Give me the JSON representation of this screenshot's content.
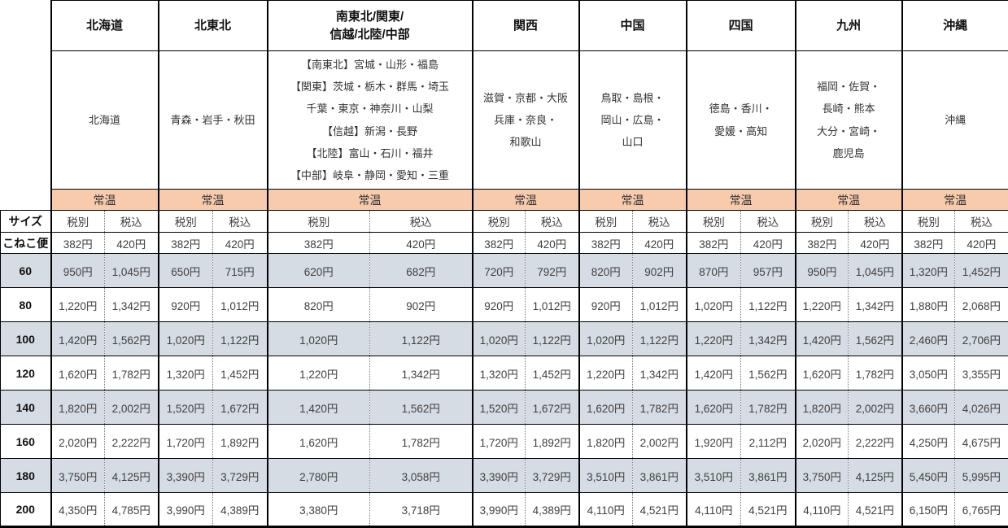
{
  "chart_data": {
    "type": "table",
    "size_header": "サイズ",
    "koneko_label": "こねこ便",
    "temperature_label": "常温",
    "tax_labels": {
      "excluded": "税別",
      "included": "税込"
    },
    "koneko_prices_excl": "382円",
    "koneko_prices_incl": "420円",
    "colors": {
      "temperature_bg": "#F8CBAD",
      "shaded_row_bg": "#D6DCE4",
      "border": "#000000"
    },
    "regions": [
      {
        "name": "北海道",
        "name_lines": [
          "北海道"
        ],
        "prefecture_lines": [
          "北海道"
        ]
      },
      {
        "name": "北東北",
        "name_lines": [
          "北東北"
        ],
        "prefecture_lines": [
          "青森・岩手・秋田"
        ]
      },
      {
        "name": "南東北/関東/信越/北陸/中部",
        "name_lines": [
          "南東北/関東/",
          "信越/北陸/中部"
        ],
        "prefecture_lines": [
          "【南東北】宮城・山形・福島",
          "【関東】茨城・栃木・群馬・埼玉",
          "千葉・東京・神奈川・山梨",
          "【信越】新潟・長野",
          "【北陸】富山・石川・福井",
          "【中部】岐阜・静岡・愛知・三重"
        ]
      },
      {
        "name": "関西",
        "name_lines": [
          "関西"
        ],
        "prefecture_lines": [
          "滋賀・京都・大阪",
          "兵庫・奈良・",
          "和歌山"
        ]
      },
      {
        "name": "中国",
        "name_lines": [
          "中国"
        ],
        "prefecture_lines": [
          "鳥取・島根・",
          "岡山・広島・",
          "山口"
        ]
      },
      {
        "name": "四国",
        "name_lines": [
          "四国"
        ],
        "prefecture_lines": [
          "徳島・香川・",
          "愛媛・高知"
        ]
      },
      {
        "name": "九州",
        "name_lines": [
          "九州"
        ],
        "prefecture_lines": [
          "福岡・佐賀・",
          "長崎・熊本",
          "大分・宮崎・",
          "鹿児島"
        ]
      },
      {
        "name": "沖縄",
        "name_lines": [
          "沖縄"
        ],
        "prefecture_lines": [
          "沖縄"
        ]
      }
    ],
    "rows": [
      {
        "size": "60",
        "shaded": true,
        "prices": [
          [
            "950円",
            "1,045円"
          ],
          [
            "650円",
            "715円"
          ],
          [
            "620円",
            "682円"
          ],
          [
            "720円",
            "792円"
          ],
          [
            "820円",
            "902円"
          ],
          [
            "870円",
            "957円"
          ],
          [
            "950円",
            "1,045円"
          ],
          [
            "1,320円",
            "1,452円"
          ]
        ]
      },
      {
        "size": "80",
        "shaded": false,
        "prices": [
          [
            "1,220円",
            "1,342円"
          ],
          [
            "920円",
            "1,012円"
          ],
          [
            "820円",
            "902円"
          ],
          [
            "920円",
            "1,012円"
          ],
          [
            "920円",
            "1,012円"
          ],
          [
            "1,020円",
            "1,122円"
          ],
          [
            "1,220円",
            "1,342円"
          ],
          [
            "1,880円",
            "2,068円"
          ]
        ]
      },
      {
        "size": "100",
        "shaded": true,
        "prices": [
          [
            "1,420円",
            "1,562円"
          ],
          [
            "1,020円",
            "1,122円"
          ],
          [
            "1,020円",
            "1,122円"
          ],
          [
            "1,020円",
            "1,122円"
          ],
          [
            "1,020円",
            "1,122円"
          ],
          [
            "1,220円",
            "1,342円"
          ],
          [
            "1,420円",
            "1,562円"
          ],
          [
            "2,460円",
            "2,706円"
          ]
        ]
      },
      {
        "size": "120",
        "shaded": false,
        "prices": [
          [
            "1,620円",
            "1,782円"
          ],
          [
            "1,320円",
            "1,452円"
          ],
          [
            "1,220円",
            "1,342円"
          ],
          [
            "1,320円",
            "1,452円"
          ],
          [
            "1,220円",
            "1,342円"
          ],
          [
            "1,420円",
            "1,562円"
          ],
          [
            "1,620円",
            "1,782円"
          ],
          [
            "3,050円",
            "3,355円"
          ]
        ]
      },
      {
        "size": "140",
        "shaded": true,
        "prices": [
          [
            "1,820円",
            "2,002円"
          ],
          [
            "1,520円",
            "1,672円"
          ],
          [
            "1,420円",
            "1,562円"
          ],
          [
            "1,520円",
            "1,672円"
          ],
          [
            "1,620円",
            "1,782円"
          ],
          [
            "1,620円",
            "1,782円"
          ],
          [
            "1,820円",
            "2,002円"
          ],
          [
            "3,660円",
            "4,026円"
          ]
        ]
      },
      {
        "size": "160",
        "shaded": false,
        "prices": [
          [
            "2,020円",
            "2,222円"
          ],
          [
            "1,720円",
            "1,892円"
          ],
          [
            "1,620円",
            "1,782円"
          ],
          [
            "1,720円",
            "1,892円"
          ],
          [
            "1,820円",
            "2,002円"
          ],
          [
            "1,920円",
            "2,112円"
          ],
          [
            "2,020円",
            "2,222円"
          ],
          [
            "4,250円",
            "4,675円"
          ]
        ]
      },
      {
        "size": "180",
        "shaded": true,
        "prices": [
          [
            "3,750円",
            "4,125円"
          ],
          [
            "3,390円",
            "3,729円"
          ],
          [
            "2,780円",
            "3,058円"
          ],
          [
            "3,390円",
            "3,729円"
          ],
          [
            "3,510円",
            "3,861円"
          ],
          [
            "3,510円",
            "3,861円"
          ],
          [
            "3,750円",
            "4,125円"
          ],
          [
            "5,450円",
            "5,995円"
          ]
        ]
      },
      {
        "size": "200",
        "shaded": false,
        "prices": [
          [
            "4,350円",
            "4,785円"
          ],
          [
            "3,990円",
            "4,389円"
          ],
          [
            "3,380円",
            "3,718円"
          ],
          [
            "3,990円",
            "4,389円"
          ],
          [
            "4,110円",
            "4,521円"
          ],
          [
            "4,110円",
            "4,521円"
          ],
          [
            "4,110円",
            "4,521円"
          ],
          [
            "6,150円",
            "6,765円"
          ]
        ]
      }
    ]
  }
}
